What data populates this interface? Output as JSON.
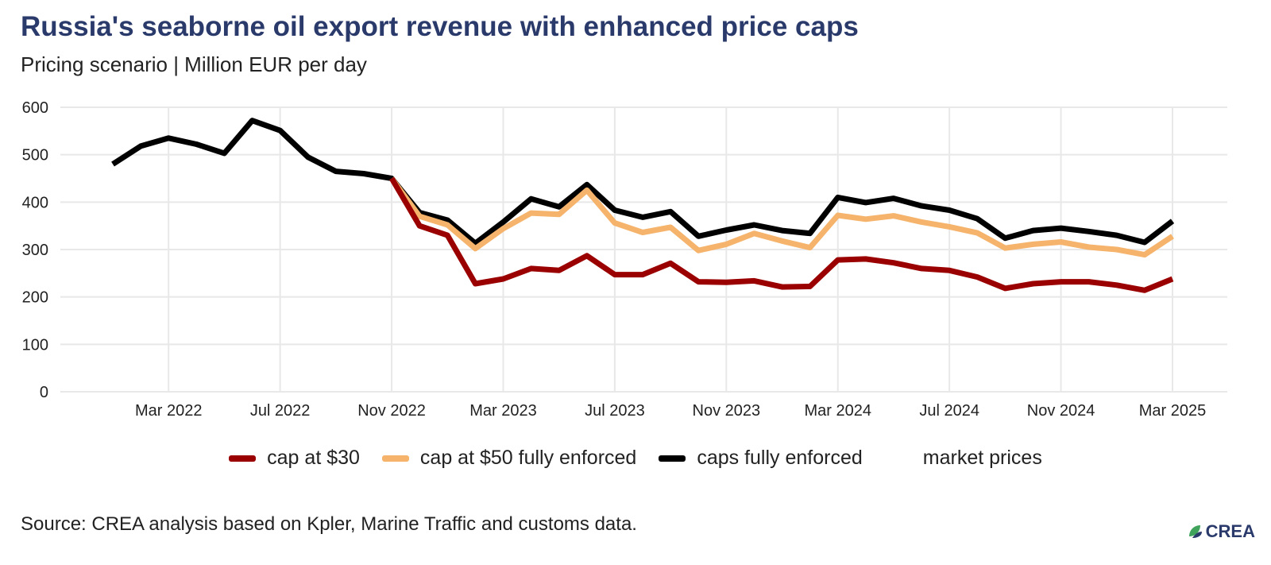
{
  "title": "Russia's seaborne oil export revenue with enhanced price caps",
  "subtitle": "Pricing scenario | Million EUR per day",
  "source": "Source: CREA analysis based on Kpler, Marine Traffic and customs data.",
  "logo_text": "CREA",
  "colors": {
    "title": "#2a3a6b",
    "grid": "#e8e8e8",
    "logo_leaf": "#3fa35b",
    "logo_leaf2": "#2a3a6b"
  },
  "chart_data": {
    "type": "line",
    "title": "Russia's seaborne oil export revenue with enhanced price caps",
    "subtitle": "Pricing scenario | Million EUR per day",
    "x": [
      "2022-01",
      "2022-02",
      "2022-03",
      "2022-04",
      "2022-05",
      "2022-06",
      "2022-07",
      "2022-08",
      "2022-09",
      "2022-10",
      "2022-11",
      "2022-12",
      "2023-01",
      "2023-02",
      "2023-03",
      "2023-04",
      "2023-05",
      "2023-06",
      "2023-07",
      "2023-08",
      "2023-09",
      "2023-10",
      "2023-11",
      "2023-12",
      "2024-01",
      "2024-02",
      "2024-03",
      "2024-04",
      "2024-05",
      "2024-06",
      "2024-07",
      "2024-08",
      "2024-09",
      "2024-10",
      "2024-11",
      "2024-12",
      "2025-01",
      "2025-02",
      "2025-03"
    ],
    "x_ticks": [
      {
        "label": "Mar 2022",
        "month": "2022-03"
      },
      {
        "label": "Jul 2022",
        "month": "2022-07"
      },
      {
        "label": "Nov 2022",
        "month": "2022-11"
      },
      {
        "label": "Mar 2023",
        "month": "2023-03"
      },
      {
        "label": "Jul 2023",
        "month": "2023-07"
      },
      {
        "label": "Nov 2023",
        "month": "2023-11"
      },
      {
        "label": "Mar 2024",
        "month": "2024-03"
      },
      {
        "label": "Jul 2024",
        "month": "2024-07"
      },
      {
        "label": "Nov 2024",
        "month": "2024-11"
      },
      {
        "label": "Mar 2025",
        "month": "2025-03"
      }
    ],
    "y_ticks": [
      0,
      100,
      200,
      300,
      400,
      500,
      600
    ],
    "ylim": [
      0,
      600
    ],
    "grid": true,
    "legend_position": "bottom",
    "series": [
      {
        "name": "market prices",
        "color": "#ffffff",
        "values": [
          480,
          518,
          535,
          522,
          503,
          572,
          551,
          495,
          465,
          460,
          450,
          378,
          362,
          313,
          358,
          407,
          390,
          437,
          383,
          368,
          380,
          328,
          341,
          352,
          340,
          334,
          410,
          399,
          408,
          392,
          383,
          365,
          324,
          340,
          345,
          338,
          330,
          315,
          360
        ]
      },
      {
        "name": "caps fully enforced",
        "color": "#000000",
        "values": [
          480,
          518,
          535,
          522,
          503,
          572,
          551,
          495,
          465,
          460,
          450,
          378,
          362,
          313,
          358,
          407,
          390,
          437,
          383,
          368,
          380,
          328,
          341,
          352,
          340,
          334,
          410,
          399,
          408,
          392,
          383,
          365,
          324,
          340,
          345,
          338,
          330,
          315,
          360
        ]
      },
      {
        "name": "cap at $50 fully enforced",
        "color": "#f5b36b",
        "values": [
          null,
          null,
          null,
          null,
          null,
          null,
          null,
          null,
          null,
          null,
          450,
          370,
          352,
          302,
          344,
          377,
          374,
          425,
          356,
          336,
          347,
          298,
          311,
          334,
          318,
          304,
          372,
          364,
          371,
          358,
          348,
          335,
          303,
          311,
          316,
          305,
          300,
          289,
          328
        ]
      },
      {
        "name": "cap at $30",
        "color": "#9b0000",
        "values": [
          null,
          null,
          null,
          null,
          null,
          null,
          null,
          null,
          null,
          null,
          450,
          350,
          330,
          228,
          238,
          260,
          256,
          287,
          247,
          247,
          271,
          232,
          231,
          234,
          221,
          222,
          278,
          280,
          272,
          260,
          256,
          242,
          218,
          228,
          232,
          232,
          225,
          214,
          238
        ]
      }
    ],
    "legend": [
      {
        "name": "cap at $30",
        "color": "#9b0000"
      },
      {
        "name": "cap at $50 fully enforced",
        "color": "#f5b36b"
      },
      {
        "name": "caps fully enforced",
        "color": "#000000"
      },
      {
        "name": "market prices",
        "color": "#ffffff"
      }
    ]
  }
}
